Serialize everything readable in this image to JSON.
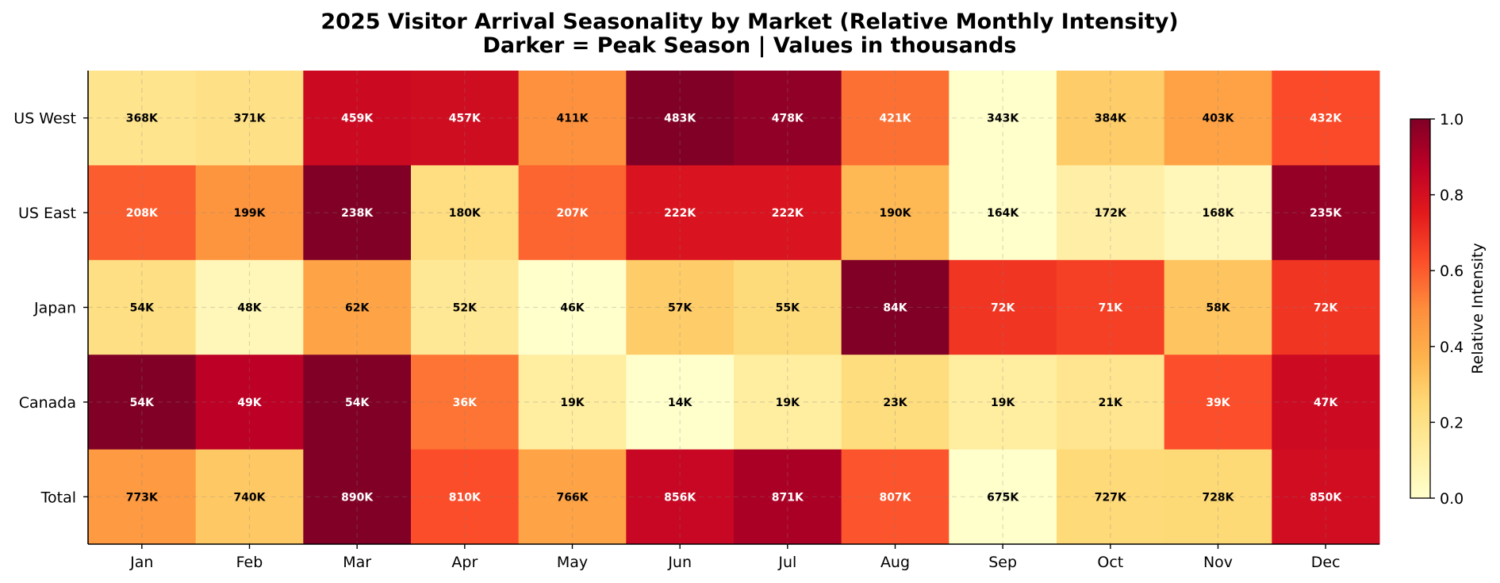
{
  "chart_data": {
    "type": "heatmap",
    "title": "2025 Visitor Arrival Seasonality by Market (Relative Monthly Intensity)",
    "subtitle": "Darker = Peak Season | Values in thousands",
    "x_categories": [
      "Jan",
      "Feb",
      "Mar",
      "Apr",
      "May",
      "Jun",
      "Jul",
      "Aug",
      "Sep",
      "Oct",
      "Nov",
      "Dec"
    ],
    "y_categories": [
      "US West",
      "US East",
      "Japan",
      "Canada",
      "Total"
    ],
    "rows": [
      {
        "name": "US West",
        "values": [
          368,
          371,
          459,
          457,
          411,
          483,
          478,
          421,
          343,
          384,
          403,
          432
        ]
      },
      {
        "name": "US East",
        "values": [
          208,
          199,
          238,
          180,
          207,
          222,
          222,
          190,
          164,
          172,
          168,
          235
        ]
      },
      {
        "name": "Japan",
        "values": [
          54,
          48,
          62,
          52,
          46,
          57,
          55,
          84,
          72,
          71,
          58,
          72
        ]
      },
      {
        "name": "Canada",
        "values": [
          54,
          49,
          54,
          36,
          19,
          14,
          19,
          23,
          19,
          21,
          39,
          47
        ]
      },
      {
        "name": "Total",
        "values": [
          773,
          740,
          890,
          810,
          766,
          856,
          871,
          807,
          675,
          727,
          728,
          850
        ]
      }
    ],
    "value_suffix": "K",
    "normalization": "per-row min-max",
    "colormap": "YlOrRd",
    "colorbar": {
      "label": "Relative Intensity",
      "range": [
        0,
        1
      ],
      "ticks": [
        "0.0",
        "0.2",
        "0.4",
        "0.6",
        "0.8",
        "1.0"
      ]
    },
    "grid": true
  }
}
